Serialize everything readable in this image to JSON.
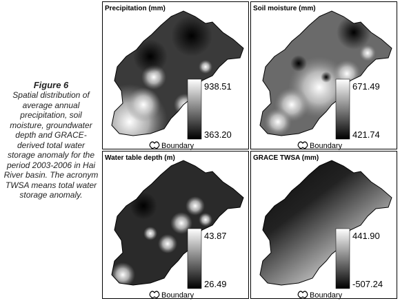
{
  "caption": {
    "title": "Figure 6",
    "text": "Spatial distribution of average annual precipitation, soil moisture, groundwater depth and GRACE-derived total water storage anomaly for the period 2003-2006 in Hai River basin. The acronym TWSA means total water storage anomaly."
  },
  "panels": [
    {
      "title": "Precipitation (mm)",
      "max_label": "938.51",
      "min_label": "363.20",
      "legend": "Boundary"
    },
    {
      "title": "Soil moisture (mm)",
      "max_label": "671.49",
      "min_label": "421.74",
      "legend": "Boundary"
    },
    {
      "title": "Water table depth (m)",
      "max_label": "43.87",
      "min_label": "26.49",
      "legend": "Boundary"
    },
    {
      "title": "GRACE TWSA (mm)",
      "max_label": "441.90",
      "min_label": "-507.24",
      "legend": "Boundary"
    }
  ]
}
